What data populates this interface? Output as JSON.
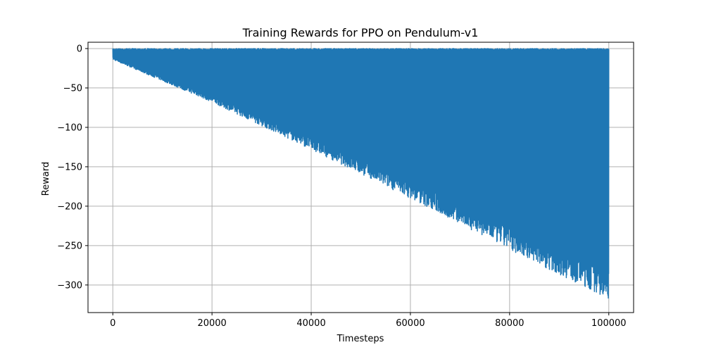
{
  "chart_data": {
    "type": "line",
    "title": "Training Rewards for PPO on Pendulum-v1",
    "xlabel": "Timesteps",
    "ylabel": "Reward",
    "xlim": [
      -5000,
      105000
    ],
    "ylim": [
      -335,
      8
    ],
    "xticks": [
      0,
      20000,
      40000,
      60000,
      80000,
      100000
    ],
    "xtick_labels": [
      "0",
      "20000",
      "40000",
      "60000",
      "80000",
      "100000"
    ],
    "yticks": [
      0,
      -50,
      -100,
      -150,
      -200,
      -250,
      -300
    ],
    "ytick_labels": [
      "0",
      "−50",
      "−100",
      "−150",
      "−200",
      "−250",
      "−300"
    ],
    "grid": true,
    "series": [
      {
        "color": "#1f77b4",
        "x_range": [
          0,
          100000
        ],
        "envelope": {
          "x": [
            0,
            20000,
            40000,
            60000,
            80000,
            100000
          ],
          "upper": [
            0,
            0,
            0,
            0,
            0,
            0
          ],
          "lower": [
            -14,
            -68,
            -128,
            -190,
            -255,
            -318
          ]
        }
      }
    ]
  }
}
